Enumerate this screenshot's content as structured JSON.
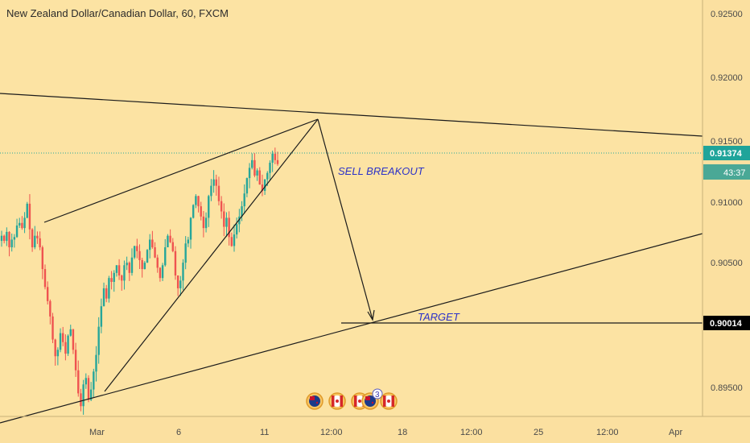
{
  "header": {
    "title": "New Zealand Dollar/Canadian Dollar, 60, FXCM"
  },
  "price_axis": {
    "ticks": [
      "0.92500",
      "0.92000",
      "0.91500",
      "0.91000",
      "0.90500",
      "0.89500"
    ],
    "current_price": "0.91374",
    "countdown": "43:37",
    "target_price": "0.90014"
  },
  "time_axis": {
    "labels": [
      "Mar",
      "6",
      "11",
      "12:00",
      "18",
      "12:00",
      "25",
      "12:00",
      "Apr"
    ]
  },
  "annotations": {
    "sell_label": "SELL BREAKOUT",
    "target_label": "TARGET"
  },
  "events": {
    "badge_count": "3",
    "flags": [
      "nz-flag-icon",
      "ca-flag-icon",
      "ca-flag-icon",
      "nz-flag-icon",
      "ca-flag-icon"
    ]
  },
  "colors": {
    "background": "#fce3a3",
    "candle_up": "#26a69a",
    "candle_down": "#ef5350",
    "drawing_line": "#1b1b1b",
    "annotation_text": "#2c32c8",
    "price_badge_bg": "#1fa49a",
    "target_badge_bg": "#000000"
  },
  "chart_data": {
    "type": "candlestick",
    "ylim": [
      0.894,
      0.9265
    ],
    "series": [
      {
        "values": [
          0.9081,
          0.9077,
          0.9084,
          0.9072,
          0.9078,
          0.908,
          0.9089,
          0.9091,
          0.9087,
          0.9095,
          0.9106,
          0.9086,
          0.9072,
          0.9081,
          0.9079,
          0.9072,
          0.9055,
          0.9041,
          0.903,
          0.9018,
          0.9,
          0.8987,
          0.8992,
          0.9005,
          0.8998,
          0.8989,
          0.9003,
          0.9008,
          0.8992,
          0.8976,
          0.8958,
          0.8948,
          0.8965,
          0.897,
          0.8953,
          0.8961,
          0.8975,
          0.8988,
          0.901,
          0.9026,
          0.904,
          0.9032,
          0.9048,
          0.9045,
          0.9052,
          0.9058,
          0.905,
          0.9046,
          0.9058,
          0.906,
          0.9052,
          0.9064,
          0.9073,
          0.9069,
          0.9062,
          0.9055,
          0.906,
          0.907,
          0.9078,
          0.9072,
          0.9064,
          0.9056,
          0.9048,
          0.9058,
          0.9072,
          0.9081,
          0.9076,
          0.9069,
          0.905,
          0.904,
          0.9046,
          0.906,
          0.9075,
          0.9078,
          0.9095,
          0.9105,
          0.9112,
          0.9104,
          0.9096,
          0.9087,
          0.9095,
          0.9112,
          0.912,
          0.9125,
          0.912,
          0.9108,
          0.91,
          0.9088,
          0.9095,
          0.908,
          0.9073,
          0.9082,
          0.909,
          0.9096,
          0.9104,
          0.9114,
          0.9126,
          0.9134,
          0.914,
          0.9128,
          0.9132,
          0.9121,
          0.9116,
          0.9125,
          0.913,
          0.9138,
          0.9145,
          0.914,
          0.9137
        ]
      }
    ]
  }
}
